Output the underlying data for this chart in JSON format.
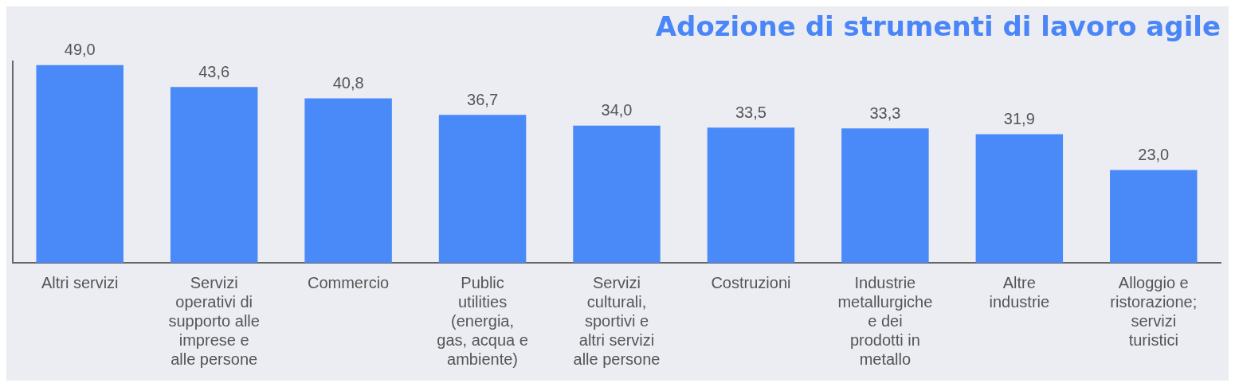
{
  "chart_data": {
    "type": "bar",
    "title": "Adozione di strumenti di lavoro agile",
    "categories": [
      "Altri servizi",
      "Servizi operativi di supporto alle imprese e alle persone",
      "Commercio",
      "Public utilities (energia, gas, acqua e ambiente)",
      "Servizi culturali, sportivi e altri servizi alle persone",
      "Costruzioni",
      "Industrie metallurgiche e dei prodotti in metallo",
      "Altre industrie",
      "Alloggio e ristorazione; servizi turistici"
    ],
    "values": [
      49.0,
      43.6,
      40.8,
      36.7,
      34.0,
      33.5,
      33.3,
      31.9,
      23.0
    ],
    "value_labels": [
      "49,0",
      "43,6",
      "40,8",
      "36,7",
      "34,0",
      "33,5",
      "33,3",
      "31,9",
      "23,0"
    ],
    "color": "#4a8af8",
    "grid": false,
    "legend": false
  }
}
